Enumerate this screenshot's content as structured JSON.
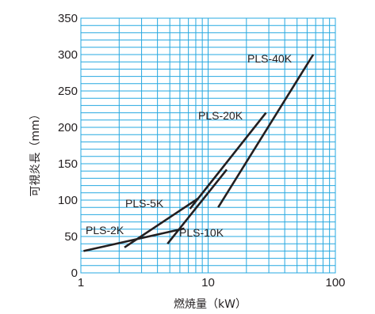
{
  "chart_data": {
    "type": "line",
    "title": "",
    "xlabel": "燃焼量（kW）",
    "ylabel": "可視炎長（mm）",
    "xscale": "log",
    "xlim": [
      1,
      100
    ],
    "ylim": [
      0,
      350
    ],
    "xticks": [
      1,
      10,
      100
    ],
    "xtick_labels": [
      "1",
      "10",
      "100"
    ],
    "yticks": [
      0,
      50,
      100,
      150,
      200,
      250,
      300,
      350
    ],
    "ytick_labels": [
      "0",
      "50",
      "100",
      "150",
      "200",
      "250",
      "300",
      "350"
    ],
    "grid": true,
    "grid_color": "#27a8e0",
    "line_color": "#231f20",
    "series": [
      {
        "name": "PLS-2K",
        "x": [
          1.05,
          6.5
        ],
        "y": [
          30,
          61
        ]
      },
      {
        "name": "PLS-5K",
        "x": [
          2.2,
          8.3
        ],
        "y": [
          35,
          102
        ]
      },
      {
        "name": "PLS-10K",
        "x": [
          4.8,
          14
        ],
        "y": [
          40,
          142
        ]
      },
      {
        "name": "PLS-20K",
        "x": [
          7.2,
          28.5
        ],
        "y": [
          88,
          220
        ]
      },
      {
        "name": "PLS-40K",
        "x": [
          12,
          67
        ],
        "y": [
          90,
          300
        ]
      }
    ]
  }
}
